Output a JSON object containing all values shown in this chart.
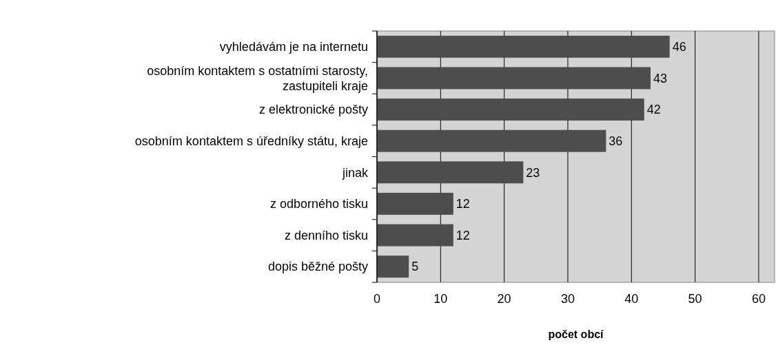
{
  "chart_data": {
    "type": "bar",
    "orientation": "horizontal",
    "xlabel": "počet obcí",
    "categories": [
      "vyhledávám je na internetu",
      "osobním kontaktem s ostatními starosty,\nzastupiteli kraje",
      "z elektronické pošty",
      "osobním kontaktem s úředníky státu, kraje",
      "jinak",
      "z odborného tisku",
      "z denního tisku",
      "dopis běžné pošty"
    ],
    "values": [
      46,
      43,
      42,
      36,
      23,
      12,
      12,
      5
    ],
    "color": "#4d4d4d",
    "xlim": [
      0,
      62.5
    ],
    "xticks": [
      0,
      10,
      20,
      30,
      40,
      50,
      60
    ],
    "grid": "x",
    "data_labels": true
  }
}
